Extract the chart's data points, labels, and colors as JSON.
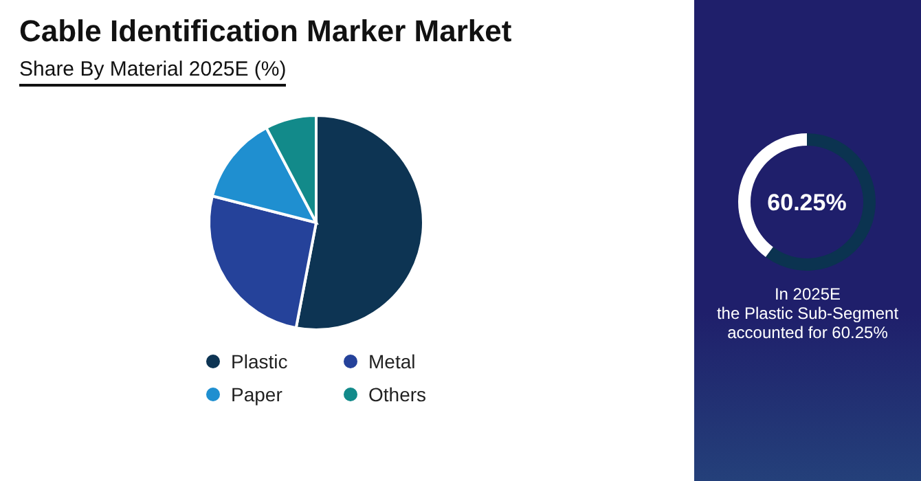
{
  "chart_data": [
    {
      "type": "pie",
      "title": "Cable Identification Marker Market",
      "subtitle": "Share By Material 2025E (%)",
      "categories": [
        "Plastic",
        "Metal",
        "Paper",
        "Others"
      ],
      "values": [
        53,
        26,
        13.3,
        7.7
      ],
      "colors": [
        "#0d3453",
        "#25429a",
        "#1f8fd0",
        "#128a8a"
      ],
      "legend": "bottom"
    },
    {
      "type": "donut",
      "categories": [
        null,
        null
      ],
      "values": [
        60.25,
        39.75
      ],
      "colors": [
        "#0b3350",
        "#ffffff"
      ],
      "value_labels": [
        "60.25%",
        null
      ],
      "annotations": [
        "In 2025E\nthe Plastic Sub-Segment\naccounted for 60.25%"
      ]
    }
  ]
}
